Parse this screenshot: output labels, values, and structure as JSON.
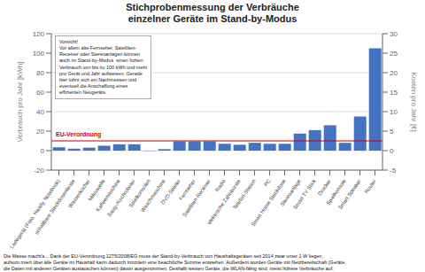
{
  "chart_data": {
    "type": "bar",
    "title": "Stichprobenmessung der Verbräuche\neinzelner Geräte im Stand-by-Modus",
    "categories": [
      "Ladegerät (Foto, Handy, Notebook)",
      "schaltbare Steckdosenleiste",
      "Wasserkocher",
      "Mikrowelle",
      "Kaffeemaschine",
      "Saug-/Kochroboter",
      "Spielkonsolen",
      "Waschmaschine",
      "DVD-Spieler",
      "Fernseher",
      "Satelliten-Receiver",
      "Radio",
      "elektrische Zahnbürste",
      "Telefon-Station",
      "PC",
      "Smart Home Steckdose",
      "Stereoanlage",
      "Smart TV Stick",
      "Drucker",
      "Spielkonsole",
      "Smart Speaker",
      "Router"
    ],
    "values": [
      3.5,
      2.0,
      3.0,
      5.0,
      6.5,
      6.5,
      -0.3,
      1.5,
      9.5,
      9.5,
      9.5,
      7.0,
      6.0,
      8.0,
      7.0,
      7.0,
      17.5,
      21.0,
      26.0,
      8.0,
      35.0,
      105.0
    ],
    "color": "#4472C4",
    "ylabel": "Verbrauch pro Jahr [kWh]",
    "ylim": [
      -20,
      120
    ],
    "yticks": [
      -20,
      0,
      20,
      40,
      60,
      80,
      100,
      120
    ],
    "y2label": "Kosten pro Jahr [€]",
    "y2lim": [
      -5,
      30
    ],
    "y2ticks": [
      -5,
      0,
      5,
      10,
      15,
      20,
      25,
      30
    ],
    "grid": true,
    "reference_lines": [
      {
        "y": 10,
        "label": "EU-Verordnung",
        "color": "#CC0000"
      }
    ],
    "annotations": [
      "Vorsicht!\nVor allem alte Fernseher, Satelliten-\nReceiver oder Stereoanlagen können\nauch im Stand-by-Modus  einen hohen\nVerbrauch von bis zu 100 kWh und mehr\npro Gerät und Jahr aufweisen. Gerade\nhier lohnt sich ein Nachmessen und\neventuell die Anschaffung eines\neffizienten Neugeräts."
    ],
    "footnote": "Die Masse macht’s... Dank der EU-Verordnung 1275/2008/EG muss der Stand-by-Verbrauch von Haushaltsgeräten seit 2014 zwar unter 1 W liegen,\naufsum miert über alle Geräte im Haushalt kann dadurch trotzdem eine beachtliche Summe entstehen. Außerdem wurden Geräte mit Netzbereitschaft (Geräte,\ndie Daten mit anderen Geräten austauschen können) davon ausgenommen. Deshalb weisen Geräte, die WLAN-fähig sind, meist höhere Verbräuche auf."
  }
}
